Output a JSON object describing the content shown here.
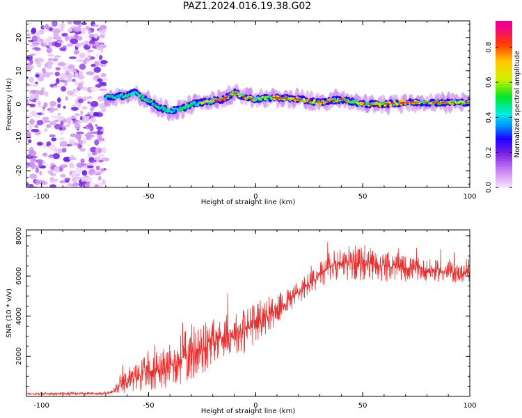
{
  "title": "PAZ1.2024.016.19.38.G02",
  "chart_data": [
    {
      "type": "heatmap",
      "xlabel": "Height of straight line (km)",
      "ylabel": "Frequency (Hz)",
      "xlim": [
        -107,
        100
      ],
      "ylim": [
        -25,
        25
      ],
      "x_ticks": [
        -100,
        -50,
        0,
        50,
        100
      ],
      "y_ticks": [
        -20,
        -10,
        0,
        10,
        20
      ],
      "colorbar": {
        "label": "Normalized spectral amplitude",
        "range": [
          0,
          0.95
        ],
        "ticks": [
          0.0,
          0.2,
          0.4,
          0.6,
          0.8
        ]
      },
      "ridge": {
        "x": [
          -70,
          -62,
          -56,
          -50,
          -45,
          -40,
          -35,
          -30,
          -25,
          -20,
          -15,
          -10,
          -5,
          0,
          10,
          20,
          30,
          40,
          50,
          60,
          70,
          80,
          90,
          100
        ],
        "frequency": [
          2.0,
          2.5,
          3.5,
          1.0,
          -1.0,
          -2.0,
          -1.5,
          0.0,
          0.5,
          1.0,
          1.5,
          3.5,
          2.0,
          1.5,
          2.0,
          1.5,
          0.5,
          1.5,
          0.0,
          0.0,
          0.5,
          0.5,
          0.5,
          0.5
        ]
      },
      "noise_region_x": [
        -107,
        -70
      ]
    },
    {
      "type": "line",
      "xlabel": "Height of straight line (km)",
      "ylabel": "SNR (10 * v/v)",
      "xlim": [
        -107,
        100
      ],
      "ylim": [
        0,
        8300
      ],
      "x_ticks": [
        -100,
        -50,
        0,
        50,
        100
      ],
      "y_ticks": [
        2000,
        4000,
        6000,
        8000
      ],
      "color": "#e8302f",
      "envelope": {
        "x": [
          -107,
          -70,
          -67,
          -60,
          -55,
          -50,
          -40,
          -30,
          -25,
          -20,
          -10,
          -5,
          0,
          10,
          20,
          30,
          35,
          40,
          50,
          60,
          70,
          80,
          90,
          100
        ],
        "mean": [
          130,
          150,
          200,
          800,
          1000,
          1200,
          1500,
          2200,
          2300,
          2800,
          3200,
          3300,
          3700,
          4300,
          5200,
          6000,
          6500,
          6700,
          6600,
          6500,
          6400,
          6300,
          6200,
          6100
        ],
        "spread": [
          60,
          60,
          150,
          600,
          700,
          800,
          1000,
          1400,
          1300,
          1000,
          900,
          1200,
          900,
          700,
          600,
          600,
          700,
          800,
          800,
          700,
          600,
          500,
          500,
          450
        ]
      }
    }
  ]
}
